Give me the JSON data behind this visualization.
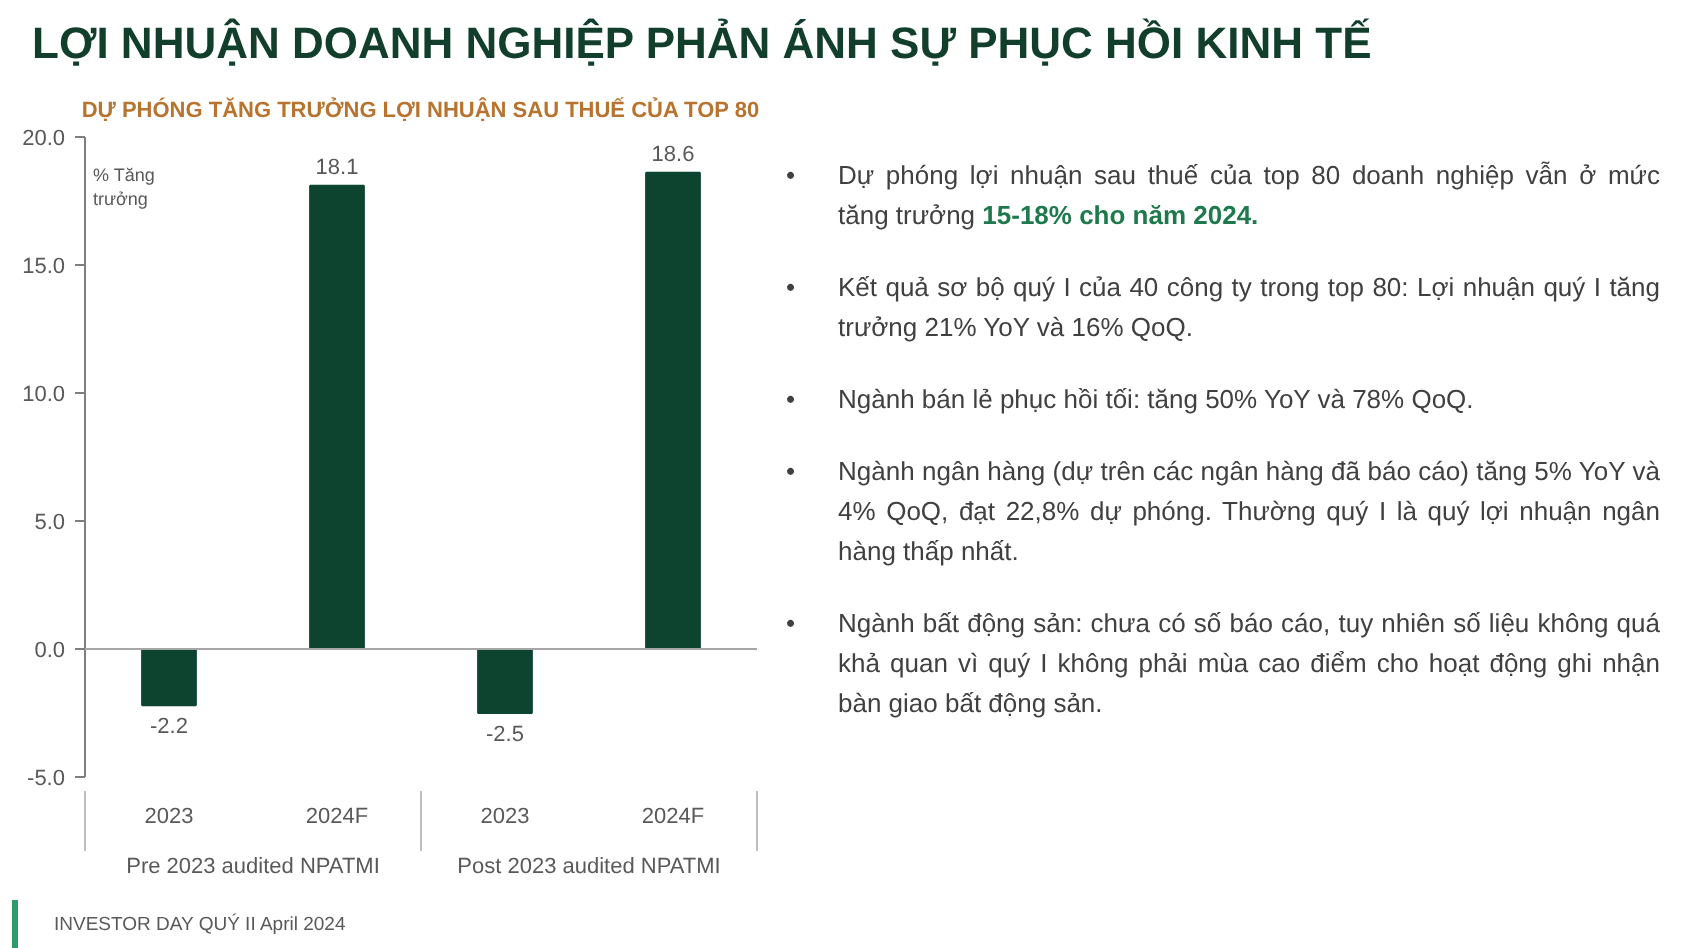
{
  "chart_data": {
    "type": "bar",
    "title": "LỢI NHUẬN DOANH NGHIỆP PHẢN ÁNH SỰ PHỤC HỒI KINH TẾ",
    "subtitle": "DỰ PHÓNG TĂNG TRƯỞNG LỢI NHUẬN SAU THUẾ CỦA TOP 80",
    "ylabel": "% Tăng trưởng",
    "categories": [
      "2023",
      "2024F",
      "2023",
      "2024F"
    ],
    "values": [
      -2.2,
      18.1,
      -2.5,
      18.6
    ],
    "color": "#0d4430",
    "ylim": [
      -5,
      20
    ],
    "yticks": [
      {
        "value": -5,
        "label": "-5.0"
      },
      {
        "value": 0,
        "label": "0.0"
      },
      {
        "value": 5,
        "label": "5.0"
      },
      {
        "value": 10,
        "label": "10.0"
      },
      {
        "value": 15,
        "label": "15.0"
      },
      {
        "value": 20,
        "label": "20.0"
      }
    ],
    "ref_lines": [
      {
        "axis": "y",
        "value": 0,
        "color": "#a6a6a6",
        "line_style": "solid"
      }
    ],
    "data_labels": true,
    "grid": false,
    "annotations": [
      "Pre 2023 audited NPATMI",
      "Post 2023 audited NPATMI",
      "• Dự phóng lợi nhuận sau thuế của top 80 doanh nghiệp vẫn ở mức tăng trưởng",
      "15-18% cho năm 2024.",
      "• Kết quả sơ bộ quý I của 40 công ty trong top 80: Lợi nhuận quý I tăng trưởng 21% YoY và 16% QoQ.",
      "• Ngành bán lẻ phục hồi tối: tăng 50% YoY và 78% QoQ.",
      "• Ngành ngân hàng (dự trên các ngân hàng đã báo cáo) tăng 5% YoY và 4% QoQ, đạt 22,8% dự phóng. Thường quý I là quý lợi nhuận ngân hàng thấp nhất.",
      "• Ngành bất động sản: chưa có số báo cáo, tuy nhiên số liệu không quá khả quan vì quý I không phải mùa cao điểm cho hoạt động ghi nhận bàn giao bất động sản.",
      "INVESTOR DAY QUÝ II April 2024"
    ]
  }
}
